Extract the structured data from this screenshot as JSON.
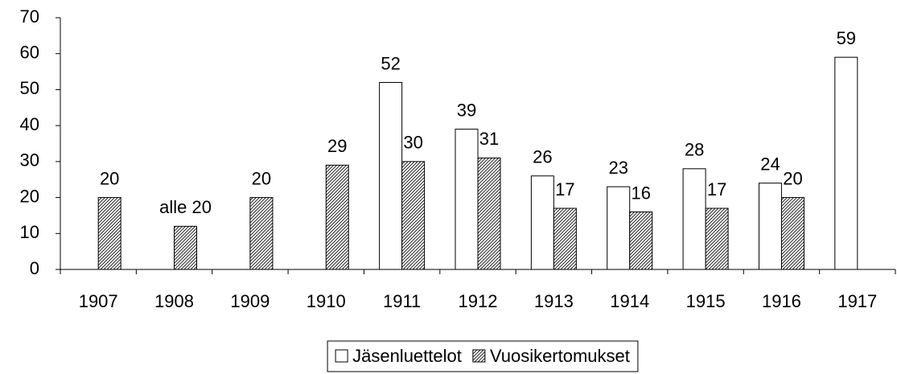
{
  "chart_data": {
    "type": "bar",
    "categories": [
      "1907",
      "1908",
      "1909",
      "1910",
      "1911",
      "1912",
      "1913",
      "1914",
      "1915",
      "1916",
      "1917"
    ],
    "series": [
      {
        "name": "Jäsenluettelot",
        "color": "#ffffff",
        "pattern": "solid",
        "values": [
          null,
          null,
          null,
          null,
          52,
          39,
          26,
          23,
          28,
          24,
          59
        ]
      },
      {
        "name": "Vuosikertomukset",
        "color": "#000000",
        "pattern": "hatch",
        "values": [
          20,
          12,
          20,
          29,
          30,
          31,
          17,
          16,
          17,
          20,
          null
        ],
        "value_labels": [
          null,
          "alle 20",
          null,
          null,
          null,
          null,
          null,
          null,
          null,
          null,
          null
        ]
      }
    ],
    "ylim": [
      0,
      70
    ],
    "yticks": [
      0,
      10,
      20,
      30,
      40,
      50,
      60,
      70
    ],
    "grid": false,
    "legend": "bottom"
  }
}
